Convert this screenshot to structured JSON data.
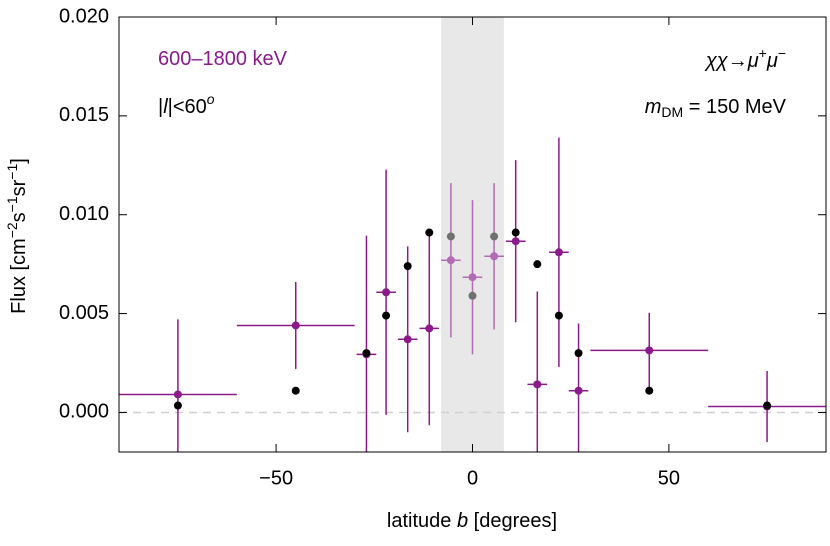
{
  "chart_data": {
    "type": "errorbar",
    "xlabel": [
      "latitude ",
      "b",
      " [degrees]"
    ],
    "ylabel": [
      "Flux [cm",
      "−2",
      "s",
      "−1",
      "sr",
      "−1",
      "]"
    ],
    "annotations": [
      [
        "600–1800 keV"
      ],
      [
        "|",
        "l",
        "|<60",
        "o"
      ],
      [
        "χχ→μ",
        "+",
        "μ",
        "−"
      ],
      [
        "m",
        "DM",
        " = 150 MeV"
      ]
    ],
    "xlim": [
      -90,
      90
    ],
    "ylim": [
      -0.002,
      0.02
    ],
    "xticks": [
      {
        "value": -50,
        "label": "−50"
      },
      0,
      50
    ],
    "yticks": [
      {
        "value": 0,
        "label": "0.000"
      },
      {
        "value": 0.005,
        "label": "0.005"
      },
      {
        "value": 0.01,
        "label": "0.010"
      },
      {
        "value": 0.015,
        "label": "0.015"
      },
      {
        "value": 0.02,
        "label": "0.020"
      }
    ],
    "shaded_band": [
      -8,
      8
    ],
    "zero_line": true,
    "series": [
      {
        "x": [
          -75,
          -45,
          -27,
          -22,
          -16.5,
          -11,
          -5.5,
          0,
          5.5,
          11,
          16.5,
          22,
          27,
          45,
          75
        ],
        "values": [
          0.00091,
          0.0044,
          0.00294,
          0.00608,
          0.0037,
          0.00425,
          0.0077,
          0.00684,
          0.0079,
          0.00866,
          0.00142,
          0.0081,
          0.0011,
          0.00314,
          0.0003
        ],
        "xerr": [
          15,
          15,
          2.5,
          2.5,
          2.5,
          2.5,
          2.5,
          2.5,
          2.5,
          2.5,
          2.5,
          2.5,
          2.5,
          15,
          15
        ],
        "yerr": [
          0.0038,
          0.0022,
          0.006,
          0.0062,
          0.0047,
          0.0049,
          0.0039,
          0.0039,
          0.0037,
          0.0041,
          0.0047,
          0.0058,
          0.0034,
          0.0019,
          0.0018
        ],
        "colors": [
          "#8b1a8b",
          "#8b1a8b",
          "#8b1a8b",
          "#8b1a8b",
          "#8b1a8b",
          "#8b1a8b",
          "#b36bb3",
          "#b36bb3",
          "#b36bb3",
          "#8b1a8b",
          "#8b1a8b",
          "#8b1a8b",
          "#8b1a8b",
          "#8b1a8b",
          "#8b1a8b"
        ]
      },
      {
        "x": [
          -75,
          -45,
          -27,
          -22,
          -16.5,
          -11,
          -5.5,
          0,
          5.5,
          11,
          16.5,
          22,
          27,
          45,
          75
        ],
        "values": [
          0.00035,
          0.0011,
          0.003,
          0.0049,
          0.0074,
          0.0091,
          0.0089,
          0.0059,
          0.0089,
          0.0091,
          0.0075,
          0.0049,
          0.003,
          0.0011,
          0.00035
        ],
        "colors": [
          "#000000",
          "#000000",
          "#000000",
          "#000000",
          "#000000",
          "#000000",
          "#707070",
          "#707070",
          "#707070",
          "#000000",
          "#000000",
          "#000000",
          "#000000",
          "#000000",
          "#000000"
        ]
      }
    ]
  }
}
